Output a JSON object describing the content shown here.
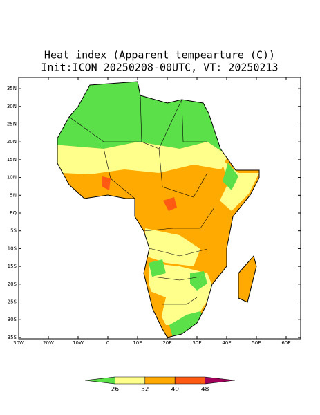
{
  "title": "Heat index (Apparent tempearture (C))",
  "subtitle": "Init:ICON 20250208-00UTC, VT: 20250213",
  "lat_ticks": [
    {
      "value": 35,
      "label": "35N"
    },
    {
      "value": 30,
      "label": "30N"
    },
    {
      "value": 25,
      "label": "25N"
    },
    {
      "value": 20,
      "label": "20N"
    },
    {
      "value": 15,
      "label": "15N"
    },
    {
      "value": 10,
      "label": "10N"
    },
    {
      "value": 5,
      "label": "5N"
    },
    {
      "value": 0,
      "label": "EQ"
    },
    {
      "value": -5,
      "label": "5S"
    },
    {
      "value": -10,
      "label": "10S"
    },
    {
      "value": -15,
      "label": "15S"
    },
    {
      "value": -20,
      "label": "20S"
    },
    {
      "value": -25,
      "label": "25S"
    },
    {
      "value": -30,
      "label": "30S"
    },
    {
      "value": -35,
      "label": "35S"
    }
  ],
  "lon_ticks": [
    {
      "value": -30,
      "label": "30W"
    },
    {
      "value": -20,
      "label": "20W"
    },
    {
      "value": -10,
      "label": "10W"
    },
    {
      "value": 0,
      "label": "0"
    },
    {
      "value": 10,
      "label": "10E"
    },
    {
      "value": 20,
      "label": "20E"
    },
    {
      "value": 30,
      "label": "30E"
    },
    {
      "value": 40,
      "label": "40E"
    },
    {
      "value": 50,
      "label": "50E"
    },
    {
      "value": 60,
      "label": "60E"
    }
  ],
  "colorbar": {
    "levels": [
      26,
      32,
      40,
      48
    ],
    "colors": [
      "#5ce04a",
      "#ffff8c",
      "#ffaa00",
      "#ff5a14",
      "#a0005a"
    ]
  }
}
